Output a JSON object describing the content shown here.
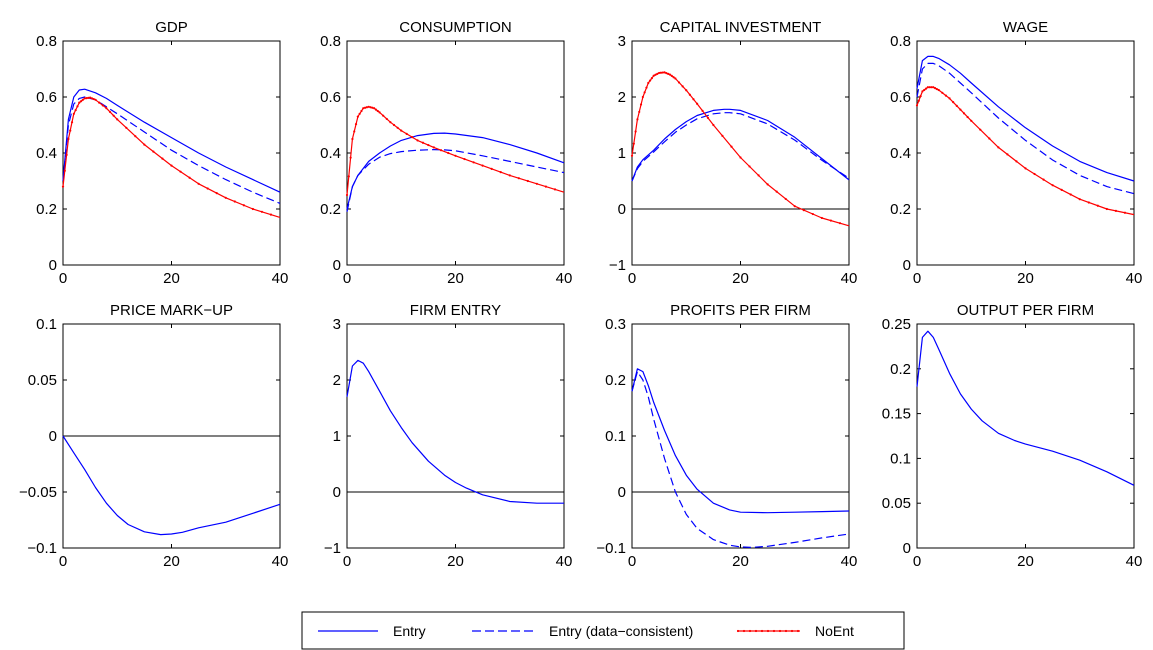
{
  "chart_data": [
    {
      "type": "line",
      "title": "GDP",
      "xlim": [
        0,
        40
      ],
      "ylim": [
        0,
        0.8
      ],
      "xticks": [
        0,
        20,
        40
      ],
      "yticks": [
        0,
        0.2,
        0.4,
        0.6,
        0.8
      ],
      "ytick_labels": [
        "0",
        "0.2",
        "0.4",
        "0.6",
        "0.8"
      ],
      "zero_line": false,
      "series": [
        {
          "name": "Entry",
          "style": "solid",
          "color": "#0000ff",
          "x": [
            0,
            1,
            2,
            3,
            4,
            6,
            8,
            10,
            15,
            20,
            25,
            30,
            35,
            40
          ],
          "y": [
            0.3,
            0.52,
            0.6,
            0.625,
            0.628,
            0.615,
            0.595,
            0.57,
            0.51,
            0.455,
            0.4,
            0.35,
            0.305,
            0.26
          ]
        },
        {
          "name": "Entry (data-consistent)",
          "style": "dashed",
          "color": "#0000ff",
          "x": [
            0,
            1,
            2,
            3,
            4,
            6,
            8,
            10,
            15,
            20,
            25,
            30,
            35,
            40
          ],
          "y": [
            0.3,
            0.5,
            0.575,
            0.595,
            0.6,
            0.59,
            0.565,
            0.54,
            0.475,
            0.41,
            0.355,
            0.305,
            0.26,
            0.22
          ]
        },
        {
          "name": "NoEnt",
          "style": "dotted-line",
          "color": "#ff0000",
          "x": [
            0,
            1,
            2,
            3,
            4,
            5,
            6,
            8,
            10,
            15,
            20,
            25,
            30,
            35,
            40
          ],
          "y": [
            0.28,
            0.45,
            0.54,
            0.58,
            0.595,
            0.598,
            0.59,
            0.56,
            0.52,
            0.43,
            0.355,
            0.29,
            0.24,
            0.2,
            0.17
          ]
        }
      ]
    },
    {
      "type": "line",
      "title": "CONSUMPTION",
      "xlim": [
        0,
        40
      ],
      "ylim": [
        0,
        0.8
      ],
      "xticks": [
        0,
        20,
        40
      ],
      "yticks": [
        0,
        0.2,
        0.4,
        0.6,
        0.8
      ],
      "ytick_labels": [
        "0",
        "0.2",
        "0.4",
        "0.6",
        "0.8"
      ],
      "zero_line": false,
      "series": [
        {
          "name": "Entry",
          "style": "solid",
          "color": "#0000ff",
          "x": [
            0,
            1,
            2,
            4,
            6,
            8,
            10,
            13,
            16,
            18,
            20,
            25,
            30,
            35,
            40
          ],
          "y": [
            0.2,
            0.28,
            0.32,
            0.37,
            0.4,
            0.425,
            0.445,
            0.462,
            0.47,
            0.471,
            0.468,
            0.455,
            0.43,
            0.4,
            0.365
          ]
        },
        {
          "name": "Entry (data-consistent)",
          "style": "dashed",
          "color": "#0000ff",
          "x": [
            0,
            1,
            2,
            4,
            6,
            8,
            10,
            13,
            16,
            18,
            20,
            25,
            30,
            35,
            40
          ],
          "y": [
            0.19,
            0.28,
            0.32,
            0.36,
            0.385,
            0.398,
            0.405,
            0.41,
            0.412,
            0.411,
            0.408,
            0.39,
            0.37,
            0.35,
            0.33
          ]
        },
        {
          "name": "NoEnt",
          "style": "dotted-line",
          "color": "#ff0000",
          "x": [
            0,
            1,
            2,
            3,
            4,
            5,
            6,
            8,
            10,
            13,
            16,
            20,
            25,
            30,
            35,
            40
          ],
          "y": [
            0.25,
            0.45,
            0.53,
            0.56,
            0.565,
            0.56,
            0.545,
            0.51,
            0.48,
            0.445,
            0.42,
            0.39,
            0.355,
            0.32,
            0.29,
            0.26
          ]
        }
      ]
    },
    {
      "type": "line",
      "title": "CAPITAL INVESTMENT",
      "xlim": [
        0,
        40
      ],
      "ylim": [
        -1,
        3
      ],
      "xticks": [
        0,
        20,
        40
      ],
      "yticks": [
        -1,
        0,
        1,
        2,
        3
      ],
      "ytick_labels": [
        "−1",
        "0",
        "1",
        "2",
        "3"
      ],
      "zero_line": true,
      "series": [
        {
          "name": "Entry",
          "style": "solid",
          "color": "#0000ff",
          "x": [
            0,
            1,
            2,
            4,
            6,
            8,
            10,
            12,
            15,
            17,
            18,
            20,
            25,
            30,
            35,
            40
          ],
          "y": [
            0.5,
            0.75,
            0.88,
            1.05,
            1.25,
            1.42,
            1.56,
            1.67,
            1.76,
            1.78,
            1.78,
            1.76,
            1.58,
            1.28,
            0.9,
            0.52
          ]
        },
        {
          "name": "Entry (data-consistent)",
          "style": "dashed",
          "color": "#0000ff",
          "x": [
            0,
            1,
            2,
            4,
            6,
            8,
            10,
            12,
            15,
            17,
            18,
            20,
            25,
            30,
            35,
            40
          ],
          "y": [
            0.5,
            0.72,
            0.85,
            1.02,
            1.2,
            1.37,
            1.5,
            1.61,
            1.7,
            1.72,
            1.72,
            1.7,
            1.52,
            1.23,
            0.87,
            0.55
          ]
        },
        {
          "name": "NoEnt",
          "style": "dotted-line",
          "color": "#ff0000",
          "x": [
            0,
            1,
            2,
            3,
            4,
            5,
            6,
            7,
            8,
            10,
            12,
            15,
            20,
            25,
            30,
            35,
            40
          ],
          "y": [
            0.95,
            1.6,
            2.0,
            2.25,
            2.38,
            2.43,
            2.44,
            2.4,
            2.33,
            2.12,
            1.88,
            1.5,
            0.92,
            0.44,
            0.05,
            -0.16,
            -0.3
          ]
        }
      ]
    },
    {
      "type": "line",
      "title": "WAGE",
      "xlim": [
        0,
        40
      ],
      "ylim": [
        0,
        0.8
      ],
      "xticks": [
        0,
        20,
        40
      ],
      "yticks": [
        0,
        0.2,
        0.4,
        0.6,
        0.8
      ],
      "ytick_labels": [
        "0",
        "0.2",
        "0.4",
        "0.6",
        "0.8"
      ],
      "zero_line": false,
      "series": [
        {
          "name": "Entry",
          "style": "solid",
          "color": "#0000ff",
          "x": [
            0,
            1,
            2,
            3,
            4,
            6,
            8,
            10,
            15,
            20,
            25,
            30,
            35,
            40
          ],
          "y": [
            0.63,
            0.73,
            0.745,
            0.745,
            0.738,
            0.715,
            0.685,
            0.65,
            0.565,
            0.49,
            0.425,
            0.37,
            0.33,
            0.3
          ]
        },
        {
          "name": "Entry (data-consistent)",
          "style": "dashed",
          "color": "#0000ff",
          "x": [
            0,
            1,
            2,
            3,
            4,
            6,
            8,
            10,
            15,
            20,
            25,
            30,
            35,
            40
          ],
          "y": [
            0.6,
            0.7,
            0.72,
            0.72,
            0.712,
            0.685,
            0.65,
            0.615,
            0.525,
            0.445,
            0.375,
            0.32,
            0.28,
            0.255
          ]
        },
        {
          "name": "NoEnt",
          "style": "dotted-line",
          "color": "#ff0000",
          "x": [
            0,
            1,
            2,
            3,
            4,
            6,
            8,
            10,
            15,
            20,
            25,
            30,
            35,
            40
          ],
          "y": [
            0.57,
            0.62,
            0.635,
            0.635,
            0.625,
            0.595,
            0.555,
            0.515,
            0.42,
            0.345,
            0.285,
            0.235,
            0.2,
            0.18
          ]
        }
      ]
    },
    {
      "type": "line",
      "title": "PRICE MARK−UP",
      "xlim": [
        0,
        40
      ],
      "ylim": [
        -0.1,
        0.1
      ],
      "xticks": [
        0,
        20,
        40
      ],
      "yticks": [
        -0.1,
        -0.05,
        0,
        0.05,
        0.1
      ],
      "ytick_labels": [
        "−0.1",
        "−0.05",
        "0",
        "0.05",
        "0.1"
      ],
      "zero_line": true,
      "series": [
        {
          "name": "Entry",
          "style": "solid",
          "color": "#0000ff",
          "x": [
            0,
            2,
            4,
            6,
            8,
            10,
            12,
            15,
            18,
            20,
            22,
            25,
            30,
            35,
            40
          ],
          "y": [
            0,
            -0.015,
            -0.03,
            -0.046,
            -0.06,
            -0.071,
            -0.079,
            -0.0855,
            -0.088,
            -0.0875,
            -0.086,
            -0.082,
            -0.077,
            -0.069,
            -0.061
          ]
        }
      ]
    },
    {
      "type": "line",
      "title": "FIRM ENTRY",
      "xlim": [
        0,
        40
      ],
      "ylim": [
        -1,
        3
      ],
      "xticks": [
        0,
        20,
        40
      ],
      "yticks": [
        -1,
        0,
        1,
        2,
        3
      ],
      "ytick_labels": [
        "−1",
        "0",
        "1",
        "2",
        "3"
      ],
      "zero_line": true,
      "series": [
        {
          "name": "Entry",
          "style": "solid",
          "color": "#0000ff",
          "x": [
            0,
            1,
            2,
            3,
            4,
            6,
            8,
            10,
            12,
            15,
            18,
            20,
            22,
            25,
            30,
            35,
            40
          ],
          "y": [
            1.7,
            2.25,
            2.35,
            2.3,
            2.15,
            1.8,
            1.45,
            1.15,
            0.88,
            0.55,
            0.3,
            0.17,
            0.07,
            -0.05,
            -0.17,
            -0.2,
            -0.2
          ]
        }
      ]
    },
    {
      "type": "line",
      "title": "PROFITS PER FIRM",
      "xlim": [
        0,
        40
      ],
      "ylim": [
        -0.1,
        0.3
      ],
      "xticks": [
        0,
        20,
        40
      ],
      "yticks": [
        -0.1,
        0,
        0.1,
        0.2,
        0.3
      ],
      "ytick_labels": [
        "−0.1",
        "0",
        "0.1",
        "0.2",
        "0.3"
      ],
      "zero_line": true,
      "series": [
        {
          "name": "Entry",
          "style": "solid",
          "color": "#0000ff",
          "x": [
            0,
            1,
            2,
            3,
            4,
            6,
            8,
            10,
            12,
            15,
            18,
            20,
            25,
            30,
            35,
            40
          ],
          "y": [
            0.18,
            0.22,
            0.215,
            0.19,
            0.16,
            0.11,
            0.065,
            0.03,
            0.005,
            -0.02,
            -0.032,
            -0.036,
            -0.037,
            -0.036,
            -0.035,
            -0.034
          ]
        },
        {
          "name": "Entry (data-consistent)",
          "style": "dashed",
          "color": "#0000ff",
          "x": [
            0,
            1,
            2,
            3,
            4,
            6,
            8,
            10,
            12,
            15,
            18,
            20,
            22,
            25,
            30,
            35,
            40
          ],
          "y": [
            0.18,
            0.215,
            0.2,
            0.17,
            0.13,
            0.06,
            0.0,
            -0.04,
            -0.065,
            -0.085,
            -0.095,
            -0.098,
            -0.099,
            -0.097,
            -0.09,
            -0.082,
            -0.075
          ]
        }
      ]
    },
    {
      "type": "line",
      "title": "OUTPUT PER FIRM",
      "xlim": [
        0,
        40
      ],
      "ylim": [
        0,
        0.25
      ],
      "xticks": [
        0,
        20,
        40
      ],
      "yticks": [
        0,
        0.05,
        0.1,
        0.15,
        0.2,
        0.25
      ],
      "ytick_labels": [
        "0",
        "0.05",
        "0.1",
        "0.15",
        "0.2",
        "0.25"
      ],
      "zero_line": false,
      "series": [
        {
          "name": "Entry",
          "style": "solid",
          "color": "#0000ff",
          "x": [
            0,
            1,
            2,
            3,
            4,
            6,
            8,
            10,
            12,
            15,
            18,
            20,
            25,
            30,
            35,
            40
          ],
          "y": [
            0.18,
            0.235,
            0.242,
            0.235,
            0.222,
            0.195,
            0.172,
            0.155,
            0.142,
            0.128,
            0.12,
            0.116,
            0.108,
            0.098,
            0.085,
            0.07
          ]
        }
      ]
    }
  ],
  "legend": {
    "placement": "bottom-center",
    "items": [
      {
        "label": "Entry",
        "style": "solid",
        "color": "#0000ff"
      },
      {
        "label": "Entry (data−consistent)",
        "style": "dashed",
        "color": "#0000ff"
      },
      {
        "label": "NoEnt",
        "style": "dotted-line",
        "color": "#ff0000"
      }
    ]
  }
}
